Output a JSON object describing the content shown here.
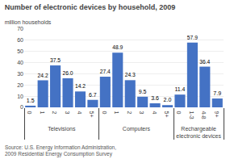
{
  "chart_data": {
    "type": "bar",
    "title": "Number of electronic devices by household, 2009",
    "subtitle": "million households",
    "source": "Source: U.S. Energy Information Administration, 2009 Residential Energy Consumption Survey",
    "color": "#4472C4",
    "groups": [
      {
        "label": "Televisions",
        "categories": [
          "0",
          "1",
          "2",
          "3",
          "4",
          "5+"
        ],
        "values": [
          1.5,
          24.2,
          37.5,
          26.0,
          14.2,
          6.7
        ],
        "value_labels": [
          "1.5",
          "24.2",
          "37.5",
          "26.0",
          "14.2",
          "6.7"
        ]
      },
      {
        "label": "Computers",
        "categories": [
          "0",
          "1",
          "2",
          "3",
          "4",
          "5+"
        ],
        "values": [
          27.4,
          48.9,
          24.3,
          9.5,
          3.6,
          2.0
        ],
        "value_labels": [
          "27.4",
          "48.9",
          "24.3",
          "9.5",
          "3.6",
          "2.0"
        ]
      },
      {
        "label": "Rechargeable\nelectronic devices",
        "categories": [
          "0",
          "1-3",
          "4-8",
          "9+"
        ],
        "values": [
          11.4,
          57.9,
          36.4,
          7.9
        ],
        "value_labels": [
          "11.4",
          "57.9",
          "36.4",
          "7.9"
        ]
      }
    ],
    "ylim": [
      0,
      70
    ],
    "yticks": [
      0,
      10,
      20,
      30,
      40,
      50,
      60,
      70
    ],
    "grid": true,
    "data_labels": true
  }
}
